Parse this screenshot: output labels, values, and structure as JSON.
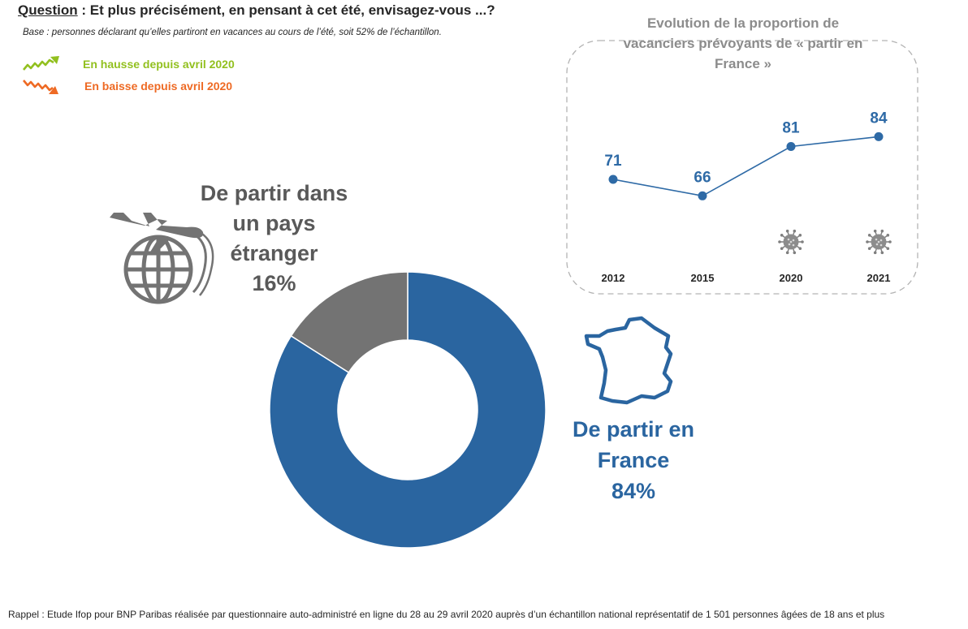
{
  "header": {
    "question_label": "Question",
    "question_text": " : Et plus précisément, en pensant à cet été, envisagez-vous ...?",
    "base_text": "Base : personnes déclarant qu’elles partiront en vacances au cours de l’été, soit 52% de l’échantillon."
  },
  "legend": {
    "up": {
      "label": "En hausse depuis avril 2020",
      "icon": "trend-up-arrow-icon",
      "color": "#92c01f"
    },
    "down": {
      "label": "En baisse depuis avril 2020",
      "icon": "trend-down-arrow-icon",
      "color": "#ee6a24"
    }
  },
  "labels": {
    "abroad": {
      "line1": "De partir dans",
      "line2": "un pays",
      "line3": "étranger",
      "value": "16%"
    },
    "france": {
      "line1": "De partir en",
      "line2": "France",
      "value": "84%"
    }
  },
  "icons": {
    "abroad": "plane-globe-icon",
    "france": "france-map-icon",
    "covid": "virus-icon"
  },
  "inset": {
    "title_line1": "Evolution de la proportion de",
    "title_line2": "vacanciers prévoyants de « partir en",
    "title_line3": "France »"
  },
  "footnote": "Rappel : Etude Ifop pour BNP Paribas réalisée par questionnaire auto-administré en ligne du 28 au 29 avril 2020 auprès d’un échantillon national représentatif de 1 501 personnes âgées de 18 ans et plus",
  "colors": {
    "france": "#2a65a0",
    "abroad": "#737373",
    "line": "#2e6aa6",
    "inset_border": "#b3b3b3"
  },
  "chart_data": [
    {
      "type": "pie",
      "variant": "donut",
      "categories": [
        "De partir en France",
        "De partir dans un pays étranger"
      ],
      "values": [
        84,
        16
      ],
      "colors": [
        "#2a65a0",
        "#737373"
      ]
    },
    {
      "type": "line",
      "x": [
        "2012",
        "2015",
        "2020",
        "2021"
      ],
      "series": [
        {
          "values": [
            71,
            66,
            81,
            84
          ]
        }
      ],
      "covid_marked_years": [
        "2020",
        "2021"
      ]
    }
  ]
}
